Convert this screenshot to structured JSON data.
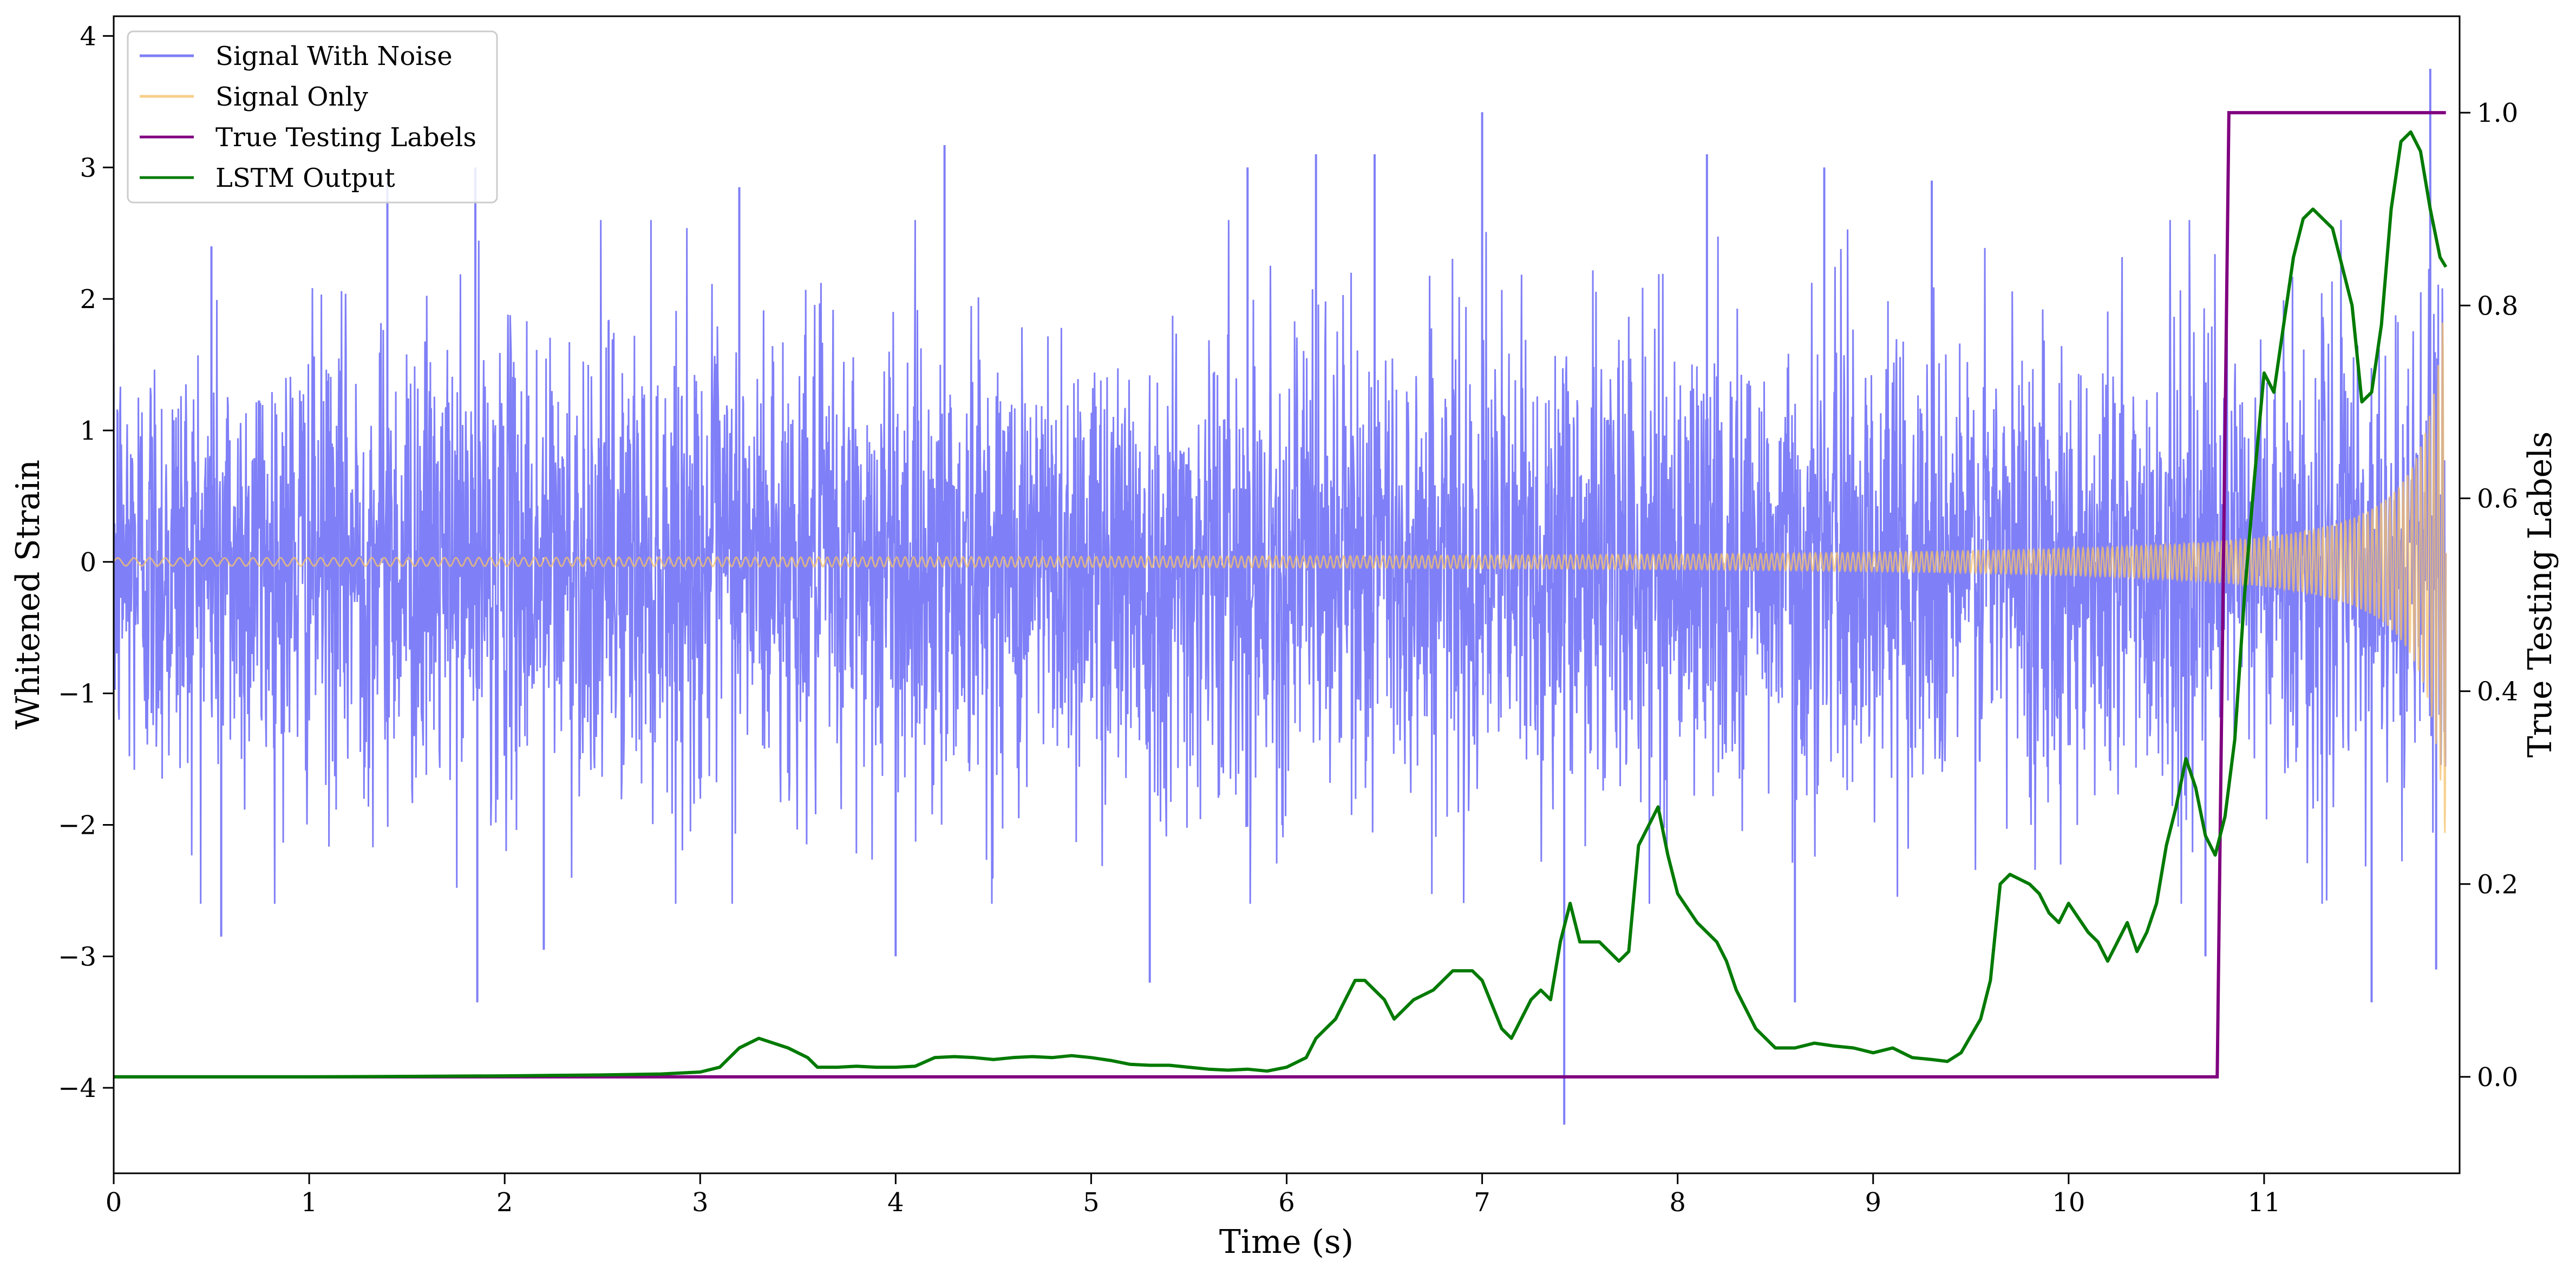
{
  "chart_data": {
    "type": "line",
    "xlabel": "Time (s)",
    "ylabel": "Whitened Strain",
    "ylabel_right": "True Testing Labels",
    "xlim": [
      0,
      12
    ],
    "ylim": [
      -4.65,
      4.15
    ],
    "ylim_right": [
      -0.1,
      1.1
    ],
    "x_ticks": [
      0,
      1,
      2,
      3,
      4,
      5,
      6,
      7,
      8,
      9,
      10,
      11
    ],
    "y_ticks": [
      {
        "value": -4,
        "label": "−4"
      },
      {
        "value": -3,
        "label": "−3"
      },
      {
        "value": -2,
        "label": "−2"
      },
      {
        "value": -1,
        "label": "−1"
      },
      {
        "value": 0,
        "label": "0"
      },
      {
        "value": 1,
        "label": "1"
      },
      {
        "value": 2,
        "label": "2"
      },
      {
        "value": 3,
        "label": "3"
      },
      {
        "value": 4,
        "label": "4"
      }
    ],
    "y_ticks_right": [
      {
        "value": 0.0,
        "label": "0.0"
      },
      {
        "value": 0.2,
        "label": "0.2"
      },
      {
        "value": 0.4,
        "label": "0.4"
      },
      {
        "value": 0.6,
        "label": "0.6"
      },
      {
        "value": 0.8,
        "label": "0.8"
      },
      {
        "value": 1.0,
        "label": "1.0"
      }
    ],
    "grid": false,
    "legend_position": "top-left",
    "series": [
      {
        "name": "Signal With Noise",
        "axis": "left",
        "color": "#7f7ff7",
        "noise_band": {
          "typical_half_width": 1.4,
          "peak_min": -4.28,
          "peak_max": 3.75,
          "signal_added": true
        },
        "spikes": [
          {
            "x": 0.5,
            "y": 2.4
          },
          {
            "x": 0.55,
            "y": -2.85
          },
          {
            "x": 1.4,
            "y": 2.9
          },
          {
            "x": 1.85,
            "y": 3.0
          },
          {
            "x": 1.86,
            "y": -3.35
          },
          {
            "x": 2.2,
            "y": -2.95
          },
          {
            "x": 3.2,
            "y": 2.85
          },
          {
            "x": 4.0,
            "y": -3.0
          },
          {
            "x": 4.25,
            "y": 3.17
          },
          {
            "x": 5.3,
            "y": -3.2
          },
          {
            "x": 5.8,
            "y": 3.0
          },
          {
            "x": 6.15,
            "y": 3.1
          },
          {
            "x": 6.45,
            "y": 3.1
          },
          {
            "x": 7.0,
            "y": 3.42
          },
          {
            "x": 7.42,
            "y": -4.28
          },
          {
            "x": 8.15,
            "y": 3.1
          },
          {
            "x": 8.6,
            "y": -3.35
          },
          {
            "x": 8.75,
            "y": 3.0
          },
          {
            "x": 9.3,
            "y": 2.9
          },
          {
            "x": 10.7,
            "y": -3.0
          },
          {
            "x": 11.55,
            "y": -3.35
          },
          {
            "x": 11.85,
            "y": 3.75
          },
          {
            "x": 11.88,
            "y": -3.1
          }
        ]
      },
      {
        "name": "Signal Only",
        "axis": "left",
        "color": "#f5c26b",
        "chirp": {
          "start_amplitude": 0.03,
          "end_amplitude": 2.2,
          "start_frequency_hz": 12,
          "end_frequency_hz": 45
        }
      },
      {
        "name": "True Testing Labels",
        "axis": "right",
        "color": "#800080",
        "x": [
          0,
          10.76,
          10.82,
          11.93
        ],
        "y": [
          0,
          0,
          1,
          1
        ]
      },
      {
        "name": "LSTM Output",
        "axis": "right",
        "color": "#007a00",
        "x": [
          0,
          1,
          2,
          2.5,
          2.8,
          3.0,
          3.1,
          3.2,
          3.3,
          3.45,
          3.55,
          3.6,
          3.7,
          3.8,
          3.9,
          4.0,
          4.1,
          4.2,
          4.3,
          4.4,
          4.5,
          4.6,
          4.7,
          4.8,
          4.9,
          5.0,
          5.1,
          5.2,
          5.3,
          5.4,
          5.5,
          5.6,
          5.7,
          5.8,
          5.9,
          6.0,
          6.1,
          6.15,
          6.2,
          6.25,
          6.3,
          6.35,
          6.4,
          6.5,
          6.55,
          6.65,
          6.75,
          6.85,
          6.9,
          6.95,
          7.0,
          7.1,
          7.15,
          7.25,
          7.3,
          7.35,
          7.4,
          7.45,
          7.5,
          7.6,
          7.7,
          7.75,
          7.8,
          7.9,
          7.95,
          8.0,
          8.1,
          8.2,
          8.25,
          8.3,
          8.4,
          8.5,
          8.6,
          8.7,
          8.8,
          8.9,
          9.0,
          9.1,
          9.2,
          9.3,
          9.38,
          9.45,
          9.55,
          9.6,
          9.65,
          9.7,
          9.8,
          9.85,
          9.9,
          9.95,
          10.0,
          10.1,
          10.15,
          10.2,
          10.25,
          10.3,
          10.35,
          10.4,
          10.45,
          10.5,
          10.55,
          10.6,
          10.65,
          10.7,
          10.75,
          10.8,
          10.85,
          10.9,
          10.95,
          11.0,
          11.05,
          11.1,
          11.15,
          11.2,
          11.25,
          11.35,
          11.45,
          11.5,
          11.55,
          11.6,
          11.65,
          11.7,
          11.75,
          11.8,
          11.85,
          11.9,
          11.93
        ],
        "y": [
          0.0,
          0.0,
          0.001,
          0.002,
          0.003,
          0.005,
          0.01,
          0.03,
          0.04,
          0.03,
          0.02,
          0.01,
          0.01,
          0.011,
          0.01,
          0.01,
          0.011,
          0.02,
          0.021,
          0.02,
          0.018,
          0.02,
          0.021,
          0.02,
          0.022,
          0.02,
          0.017,
          0.013,
          0.012,
          0.012,
          0.01,
          0.008,
          0.007,
          0.008,
          0.006,
          0.01,
          0.02,
          0.04,
          0.05,
          0.06,
          0.08,
          0.1,
          0.1,
          0.08,
          0.06,
          0.08,
          0.09,
          0.11,
          0.11,
          0.11,
          0.1,
          0.05,
          0.04,
          0.08,
          0.09,
          0.08,
          0.14,
          0.18,
          0.14,
          0.14,
          0.12,
          0.13,
          0.24,
          0.28,
          0.23,
          0.19,
          0.16,
          0.14,
          0.12,
          0.09,
          0.05,
          0.03,
          0.03,
          0.035,
          0.032,
          0.03,
          0.025,
          0.03,
          0.02,
          0.018,
          0.016,
          0.025,
          0.06,
          0.1,
          0.2,
          0.21,
          0.2,
          0.19,
          0.17,
          0.16,
          0.18,
          0.15,
          0.14,
          0.12,
          0.14,
          0.16,
          0.13,
          0.15,
          0.18,
          0.24,
          0.28,
          0.33,
          0.3,
          0.25,
          0.23,
          0.27,
          0.35,
          0.5,
          0.62,
          0.73,
          0.71,
          0.78,
          0.85,
          0.89,
          0.9,
          0.88,
          0.8,
          0.7,
          0.71,
          0.78,
          0.9,
          0.97,
          0.98,
          0.96,
          0.9,
          0.85,
          0.84
        ]
      }
    ]
  }
}
